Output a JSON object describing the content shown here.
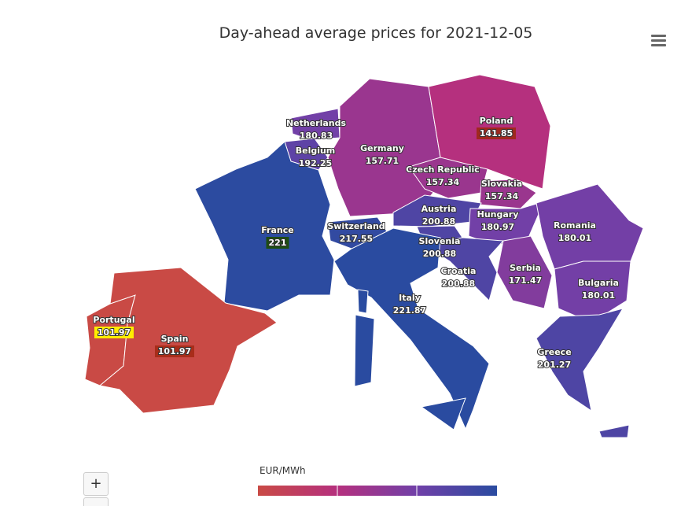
{
  "title": "Day-ahead average prices for 2021-12-05",
  "legend_title": "EUR/MWh",
  "colorscale": [
    "#c94a45",
    "#b5307e",
    "#7040a8",
    "#2a4ba0"
  ],
  "countries": [
    {
      "name": "Netherlands",
      "value": 180.83
    },
    {
      "name": "Belgium",
      "value": 192.25
    },
    {
      "name": "Germany",
      "value": 157.71
    },
    {
      "name": "Poland",
      "value": 141.85
    },
    {
      "name": "Czech Republic",
      "value": 157.34
    },
    {
      "name": "Slovakia",
      "value": 157.34
    },
    {
      "name": "France",
      "value": 221
    },
    {
      "name": "Switzerland",
      "value": 217.55
    },
    {
      "name": "Austria",
      "value": 200.88
    },
    {
      "name": "Hungary",
      "value": 180.97
    },
    {
      "name": "Romania",
      "value": 180.01
    },
    {
      "name": "Slovenia",
      "value": 200.88
    },
    {
      "name": "Croatia",
      "value": 200.88
    },
    {
      "name": "Serbia",
      "value": 171.47
    },
    {
      "name": "Bulgaria",
      "value": 180.01
    },
    {
      "name": "Portugal",
      "value": 101.97
    },
    {
      "name": "Spain",
      "value": 101.97
    },
    {
      "name": "Italy",
      "value": 221.87
    },
    {
      "name": "Greece",
      "value": 201.27
    }
  ]
}
